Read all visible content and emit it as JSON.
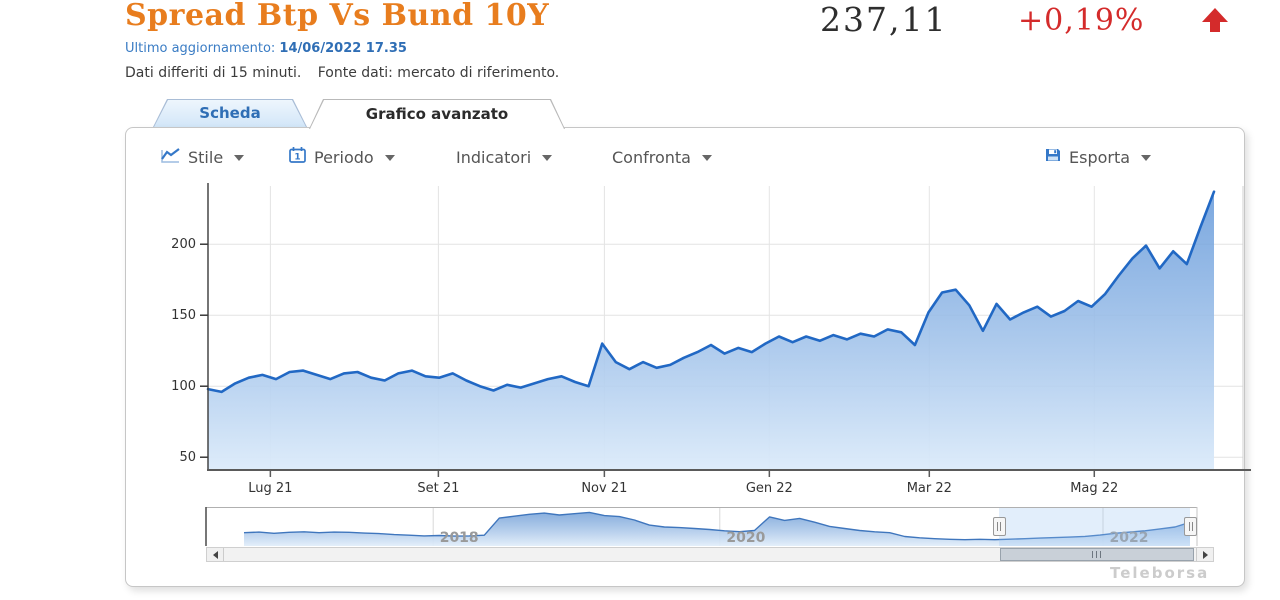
{
  "header": {
    "title": "Spread Btp Vs Bund 10Y",
    "value": "237,11",
    "change": "+0,19%",
    "updated_label": "Ultimo aggiornamento:",
    "updated_value": "14/06/2022 17.35",
    "disclaimer_1": "Dati differiti di 15 minuti.",
    "disclaimer_2": "Fonte dati: mercato di riferimento."
  },
  "tabs": [
    {
      "label": "Scheda",
      "active": false
    },
    {
      "label": "Grafico avanzato",
      "active": true
    }
  ],
  "toolbar": {
    "stile": "Stile",
    "periodo": "Periodo",
    "indicatori": "Indicatori",
    "confronta": "Confronta",
    "esporta": "Esporta"
  },
  "watermark": "Teleborsa",
  "colors": {
    "title_orange": "#e87d1e",
    "change_red": "#d42b2b",
    "link_blue": "#3a7cc4",
    "line_blue": "#2168c4",
    "fill_top": "#5f95d8",
    "fill_bottom": "#dcebfa",
    "icon_blue": "#3578c8",
    "grid": "#e4e4e4"
  },
  "chart_data": [
    {
      "type": "area",
      "title": "Spread Btp Vs Bund 10Y",
      "xlabel": "",
      "ylabel": "",
      "x_range": [
        "2021-06-08",
        "2022-06-14"
      ],
      "ylim": [
        41,
        241
      ],
      "y_ticks": [
        50,
        100,
        150,
        200
      ],
      "x_ticks": [
        {
          "pos": 0.062,
          "label": "Lug 21"
        },
        {
          "pos": 0.229,
          "label": "Set 21"
        },
        {
          "pos": 0.394,
          "label": "Nov 21"
        },
        {
          "pos": 0.558,
          "label": "Gen 22"
        },
        {
          "pos": 0.717,
          "label": "Mar 22"
        },
        {
          "pos": 0.881,
          "label": "Mag 22"
        }
      ],
      "values": [
        98,
        96,
        102,
        106,
        108,
        105,
        110,
        111,
        108,
        105,
        109,
        110,
        106,
        104,
        109,
        111,
        107,
        106,
        109,
        104,
        100,
        97,
        101,
        99,
        102,
        105,
        107,
        103,
        100,
        130,
        117,
        112,
        117,
        113,
        115,
        120,
        124,
        129,
        123,
        127,
        124,
        130,
        135,
        131,
        135,
        132,
        136,
        133,
        137,
        135,
        140,
        138,
        129,
        152,
        166,
        168,
        157,
        139,
        158,
        147,
        152,
        156,
        149,
        153,
        160,
        156,
        165,
        178,
        190,
        199,
        183,
        195,
        186,
        212,
        237
      ],
      "last_value": 237.11,
      "grid": true,
      "legend": false
    },
    {
      "type": "area",
      "role": "navigator",
      "x_range": [
        "2016-07-01",
        "2022-06-14"
      ],
      "ylim": [
        50,
        350
      ],
      "x_ticks": [
        {
          "pos": 0.2,
          "label": "2018"
        },
        {
          "pos": 0.503,
          "label": "2020"
        },
        {
          "pos": 0.908,
          "label": "2022"
        }
      ],
      "values": [
        155,
        160,
        150,
        158,
        162,
        155,
        160,
        158,
        152,
        148,
        140,
        135,
        130,
        133,
        128,
        130,
        135,
        270,
        285,
        300,
        310,
        295,
        305,
        315,
        290,
        282,
        255,
        215,
        200,
        195,
        188,
        180,
        170,
        163,
        172,
        280,
        252,
        268,
        238,
        205,
        188,
        172,
        162,
        155,
        125,
        115,
        108,
        103,
        100,
        103,
        100,
        104,
        108,
        112,
        116,
        120,
        126,
        136,
        150,
        160,
        170,
        185,
        200,
        237
      ],
      "selection": {
        "start_pct": 79.8,
        "end_pct": 100
      }
    }
  ]
}
